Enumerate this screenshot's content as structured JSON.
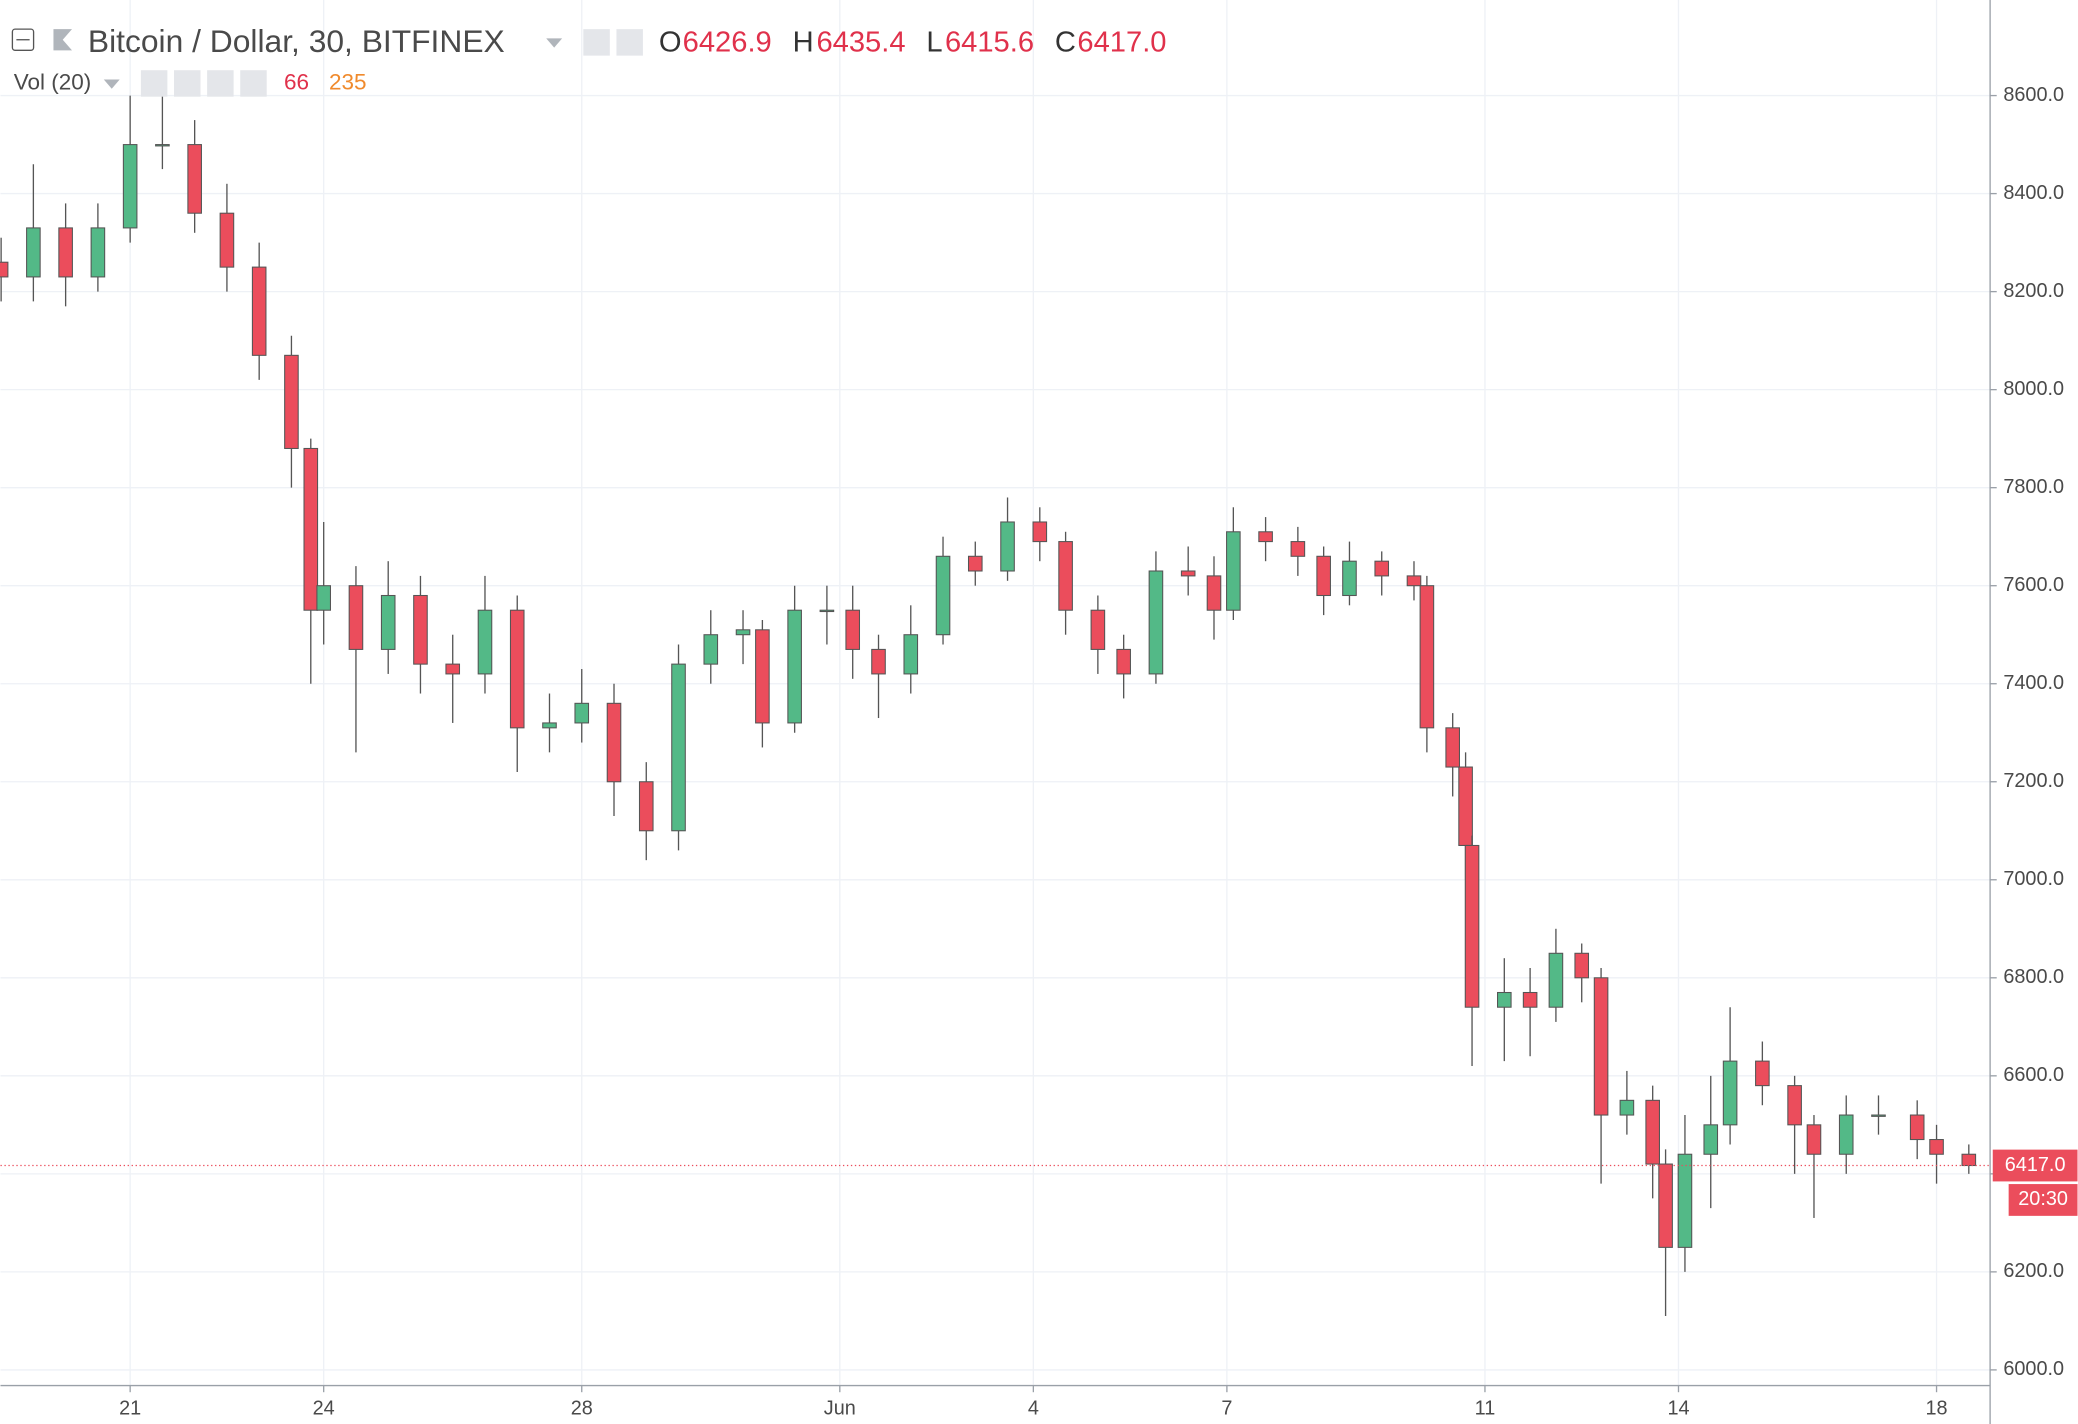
{
  "chart_data": {
    "type": "candlestick",
    "title": "Bitcoin / Dollar, 30, BITFINEX",
    "ohlc_legend": [
      {
        "name": "O",
        "text": "6426.9"
      },
      {
        "name": "H",
        "text": "6435.4"
      },
      {
        "name": "L",
        "text": "6415.6"
      },
      {
        "name": "C",
        "text": "6417.0"
      }
    ],
    "volume_legend": {
      "name": "Vol (20)",
      "volume": "66",
      "average": "235"
    },
    "x": [
      -2,
      -1.5,
      -1,
      -0.5,
      0,
      0.5,
      1,
      1.5,
      2,
      2.5,
      2.8,
      3,
      3.5,
      4,
      4.5,
      5,
      5.5,
      6,
      6.5,
      7,
      7.5,
      8,
      8.5,
      9,
      9.5,
      9.8,
      10.3,
      10.8,
      11.2,
      11.6,
      12.1,
      12.6,
      13.1,
      13.6,
      14.1,
      14.5,
      15,
      15.4,
      15.9,
      16.4,
      16.8,
      17.1,
      17.6,
      18.1,
      18.5,
      18.9,
      19.4,
      19.9,
      20.1,
      20.5,
      20.7,
      20.8,
      21.3,
      21.7,
      22.1,
      22.5,
      22.8,
      23.2,
      23.6,
      23.8,
      24.1,
      24.5,
      24.8,
      25.3,
      25.8,
      26.1,
      26.6,
      27.1,
      27.7,
      28,
      28.5
    ],
    "open": [
      8260,
      8230,
      8330,
      8230,
      8330,
      8500,
      8500,
      8360,
      8250,
      8070,
      7880,
      7550,
      7600,
      7470,
      7580,
      7440,
      7420,
      7550,
      7310,
      7320,
      7360,
      7200,
      7100,
      7440,
      7500,
      7510,
      7320,
      7550,
      7550,
      7470,
      7420,
      7500,
      7660,
      7630,
      7730,
      7690,
      7550,
      7470,
      7420,
      7630,
      7620,
      7550,
      7710,
      7690,
      7660,
      7580,
      7650,
      7620,
      7600,
      7310,
      7230,
      7070,
      6740,
      6770,
      6740,
      6850,
      6800,
      6520,
      6550,
      6420,
      6250,
      6440,
      6500,
      6630,
      6580,
      6500,
      6440,
      6520,
      6520,
      6470,
      6440
    ],
    "high": [
      8310,
      8460,
      8380,
      8380,
      8600,
      8620,
      8550,
      8420,
      8300,
      8110,
      7900,
      7730,
      7640,
      7650,
      7620,
      7500,
      7620,
      7580,
      7380,
      7430,
      7400,
      7240,
      7480,
      7550,
      7550,
      7530,
      7600,
      7600,
      7600,
      7500,
      7560,
      7700,
      7690,
      7780,
      7760,
      7710,
      7580,
      7500,
      7670,
      7680,
      7660,
      7760,
      7740,
      7720,
      7680,
      7690,
      7670,
      7650,
      7620,
      7340,
      7260,
      7090,
      6840,
      6820,
      6900,
      6870,
      6820,
      6610,
      6580,
      6450,
      6520,
      6600,
      6740,
      6670,
      6600,
      6520,
      6560,
      6560,
      6550,
      6500,
      6460
    ],
    "low": [
      8180,
      8180,
      8170,
      8200,
      8300,
      8450,
      8320,
      8200,
      8020,
      7800,
      7400,
      7480,
      7260,
      7420,
      7380,
      7320,
      7380,
      7220,
      7260,
      7280,
      7130,
      7040,
      7060,
      7400,
      7440,
      7270,
      7300,
      7480,
      7410,
      7330,
      7380,
      7480,
      7600,
      7610,
      7650,
      7500,
      7420,
      7370,
      7400,
      7580,
      7490,
      7530,
      7650,
      7620,
      7540,
      7560,
      7580,
      7570,
      7260,
      7170,
      7000,
      6620,
      6630,
      6640,
      6710,
      6750,
      6380,
      6480,
      6350,
      6110,
      6200,
      6330,
      6460,
      6540,
      6400,
      6310,
      6400,
      6480,
      6430,
      6380,
      6400
    ],
    "close": [
      8230,
      8330,
      8230,
      8330,
      8500,
      8500,
      8360,
      8250,
      8070,
      7880,
      7550,
      7600,
      7470,
      7580,
      7440,
      7420,
      7550,
      7310,
      7320,
      7360,
      7200,
      7100,
      7440,
      7500,
      7510,
      7320,
      7550,
      7550,
      7470,
      7420,
      7500,
      7660,
      7630,
      7730,
      7690,
      7550,
      7470,
      7420,
      7630,
      7620,
      7550,
      7710,
      7690,
      7660,
      7580,
      7650,
      7620,
      7600,
      7310,
      7230,
      7070,
      6740,
      6770,
      6740,
      6850,
      6800,
      6520,
      6550,
      6420,
      6250,
      6440,
      6500,
      6630,
      6580,
      6500,
      6440,
      6520,
      6520,
      6470,
      6440,
      6417
    ],
    "up_color": "#53b987",
    "down_color": "#eb4d5c",
    "last_price": {
      "value": 6417,
      "label": "6417.0"
    },
    "countdown": "20:30",
    "xlim": [
      -2.01,
      28.83
    ],
    "ylim": [
      5968,
      8795
    ],
    "xticks": [
      {
        "value": 0,
        "label": "21"
      },
      {
        "value": 3,
        "label": "24"
      },
      {
        "value": 7,
        "label": "28"
      },
      {
        "value": 11,
        "label": "Jun"
      },
      {
        "value": 14,
        "label": "4"
      },
      {
        "value": 17,
        "label": "7"
      },
      {
        "value": 21,
        "label": "11"
      },
      {
        "value": 24,
        "label": "14"
      },
      {
        "value": 28,
        "label": "18"
      }
    ],
    "yticks": [
      {
        "value": 6000,
        "label": "6000.0"
      },
      {
        "value": 6200,
        "label": "6200.0"
      },
      {
        "value": 6400,
        "label": "6400.0"
      },
      {
        "value": 6600,
        "label": "6600.0"
      },
      {
        "value": 6800,
        "label": "6800.0"
      },
      {
        "value": 7000,
        "label": "7000.0"
      },
      {
        "value": 7200,
        "label": "7200.0"
      },
      {
        "value": 7400,
        "label": "7400.0"
      },
      {
        "value": 7600,
        "label": "7600.0"
      },
      {
        "value": 7800,
        "label": "7800.0"
      },
      {
        "value": 8000,
        "label": "8000.0"
      },
      {
        "value": 8200,
        "label": "8200.0"
      },
      {
        "value": 8400,
        "label": "8400.0"
      },
      {
        "value": 8600,
        "label": "8600.0"
      }
    ],
    "grid": true
  }
}
